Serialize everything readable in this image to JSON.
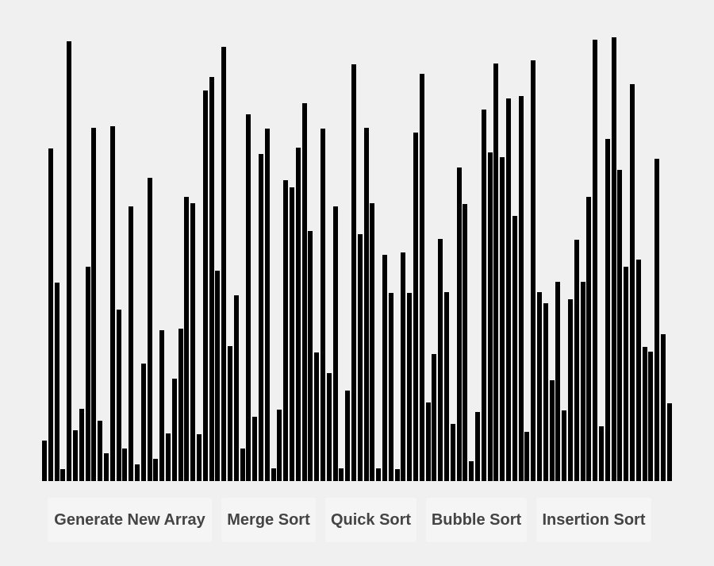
{
  "buttons": {
    "generate": "Generate New Array",
    "merge": "Merge Sort",
    "quick": "Quick Sort",
    "bubble": "Bubble Sort",
    "insertion": "Insertion Sort"
  },
  "colors": {
    "background": "#f0f0f0",
    "bar": "#000000",
    "button_bg": "#f5f5f5",
    "button_text": "#444444"
  },
  "array": {
    "max_value": 560,
    "values": [
      51,
      419,
      250,
      15,
      554,
      64,
      91,
      270,
      445,
      76,
      35,
      447,
      216,
      41,
      346,
      21,
      148,
      382,
      28,
      190,
      60,
      129,
      192,
      358,
      350,
      59,
      492,
      509,
      265,
      547,
      170,
      234,
      41,
      462,
      81,
      412,
      444,
      16,
      90,
      379,
      370,
      420,
      476,
      315,
      162,
      444,
      136,
      346,
      16,
      114,
      525,
      311,
      445,
      350,
      16,
      285,
      237,
      15,
      288,
      237,
      439,
      513,
      99,
      160,
      305,
      238,
      72,
      395,
      349,
      25,
      87,
      468,
      414,
      526,
      408,
      482,
      334,
      485,
      62,
      530,
      238,
      224,
      127,
      251,
      89,
      229,
      304,
      251,
      358,
      556,
      69,
      431,
      559,
      392,
      270,
      500,
      279,
      169,
      163,
      406,
      185,
      98
    ]
  }
}
